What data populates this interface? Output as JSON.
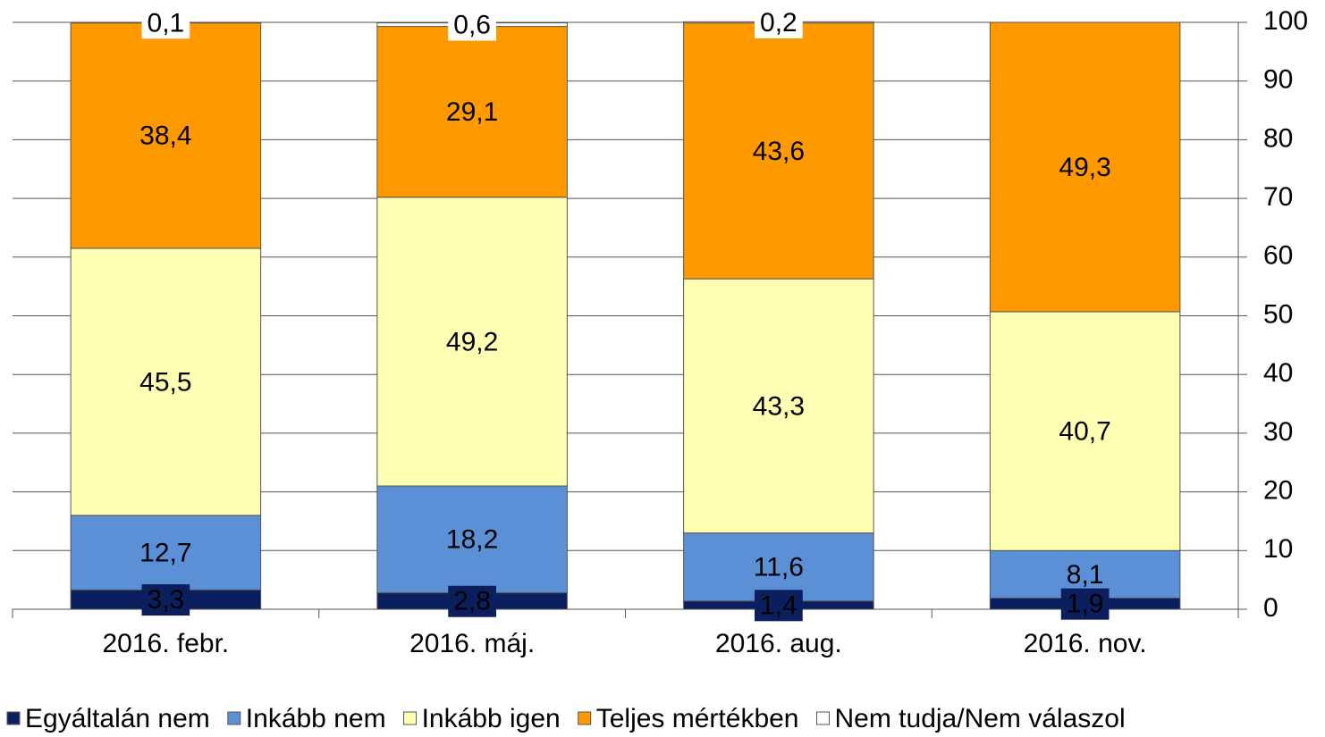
{
  "chart_data": {
    "type": "stacked_bar",
    "categories": [
      "2016. febr.",
      "2016. máj.",
      "2016. aug.",
      "2016. nov."
    ],
    "series": [
      {
        "name": "Egyáltalán nem",
        "color": "#0b1f5e",
        "values": [
          3.3,
          2.8,
          1.4,
          1.9
        ],
        "value_labels": [
          "3,3",
          "2,8",
          "1,4",
          "1,9"
        ]
      },
      {
        "name": "Inkább nem",
        "color": "#5b8fd6",
        "values": [
          12.7,
          18.2,
          11.6,
          8.1
        ],
        "value_labels": [
          "12,7",
          "18,2",
          "11,6",
          "8,1"
        ]
      },
      {
        "name": "Inkább igen",
        "color": "#ffffb3",
        "values": [
          45.5,
          49.2,
          43.3,
          40.7
        ],
        "value_labels": [
          "45,5",
          "49,2",
          "43,3",
          "40,7"
        ]
      },
      {
        "name": "Teljes mértékben",
        "color": "#ff9900",
        "values": [
          38.4,
          29.1,
          43.6,
          49.3
        ],
        "value_labels": [
          "38,4",
          "29,1",
          "43,6",
          "49,3"
        ]
      },
      {
        "name": "Nem tudja/Nem válaszol",
        "color": "#ffffff",
        "values": [
          0.1,
          0.6,
          0.2,
          null
        ],
        "value_labels": [
          "0,1",
          "0,6",
          "0,2",
          null
        ]
      }
    ],
    "ylim": [
      0,
      100
    ],
    "yticks": [
      0,
      10,
      20,
      30,
      40,
      50,
      60,
      70,
      80,
      90,
      100
    ],
    "y_axis_side": "right",
    "grid": true,
    "legend": "bottom"
  }
}
